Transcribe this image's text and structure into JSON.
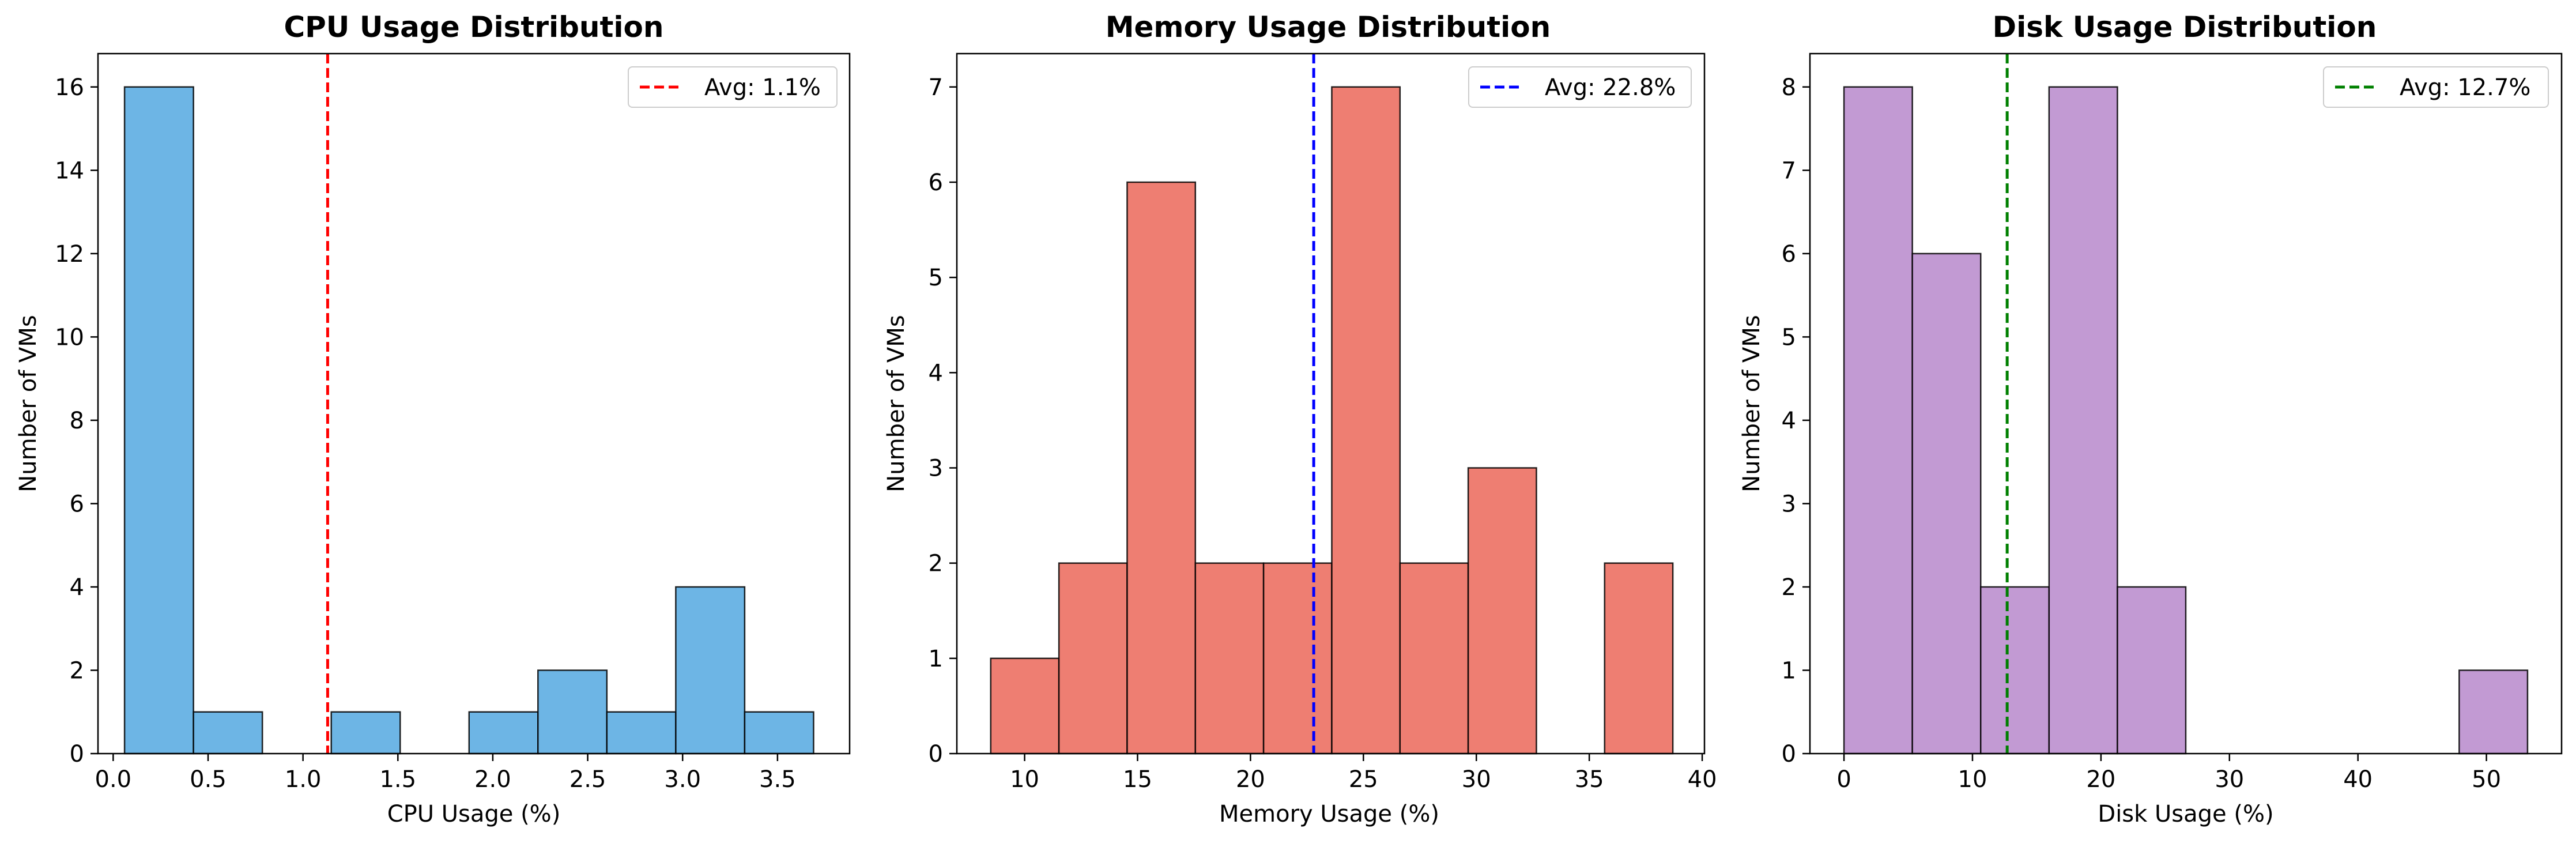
{
  "figure": {
    "background": "#ffffff"
  },
  "chart_data": [
    {
      "type": "bar",
      "histogram": true,
      "title": "CPU Usage Distribution",
      "xlabel": "CPU Usage (%)",
      "ylabel": "Number of VMs",
      "xlim": [
        -0.08,
        3.88
      ],
      "ylim": [
        0,
        16.8
      ],
      "xticks": [
        0.0,
        0.5,
        1.0,
        1.5,
        2.0,
        2.5,
        3.0,
        3.5
      ],
      "xtick_labels": [
        "0.0",
        "0.5",
        "1.0",
        "1.5",
        "2.0",
        "2.5",
        "3.0",
        "3.5"
      ],
      "yticks": [
        0,
        2,
        4,
        6,
        8,
        10,
        12,
        14,
        16
      ],
      "ytick_labels": [
        "0",
        "2",
        "4",
        "6",
        "8",
        "10",
        "12",
        "14",
        "16"
      ],
      "bin_edges": [
        0.06,
        0.423,
        0.786,
        1.149,
        1.512,
        1.875,
        2.238,
        2.601,
        2.964,
        3.327,
        3.69
      ],
      "counts": [
        16,
        1,
        0,
        1,
        0,
        1,
        2,
        1,
        4,
        1
      ],
      "bar_color": "#5dade2",
      "avg": {
        "value": 1.13,
        "color": "#ff0000",
        "label": "Avg: 1.1%"
      },
      "legend_loc": "upper right",
      "grid": false
    },
    {
      "type": "bar",
      "histogram": true,
      "title": "Memory Usage Distribution",
      "xlabel": "Memory Usage (%)",
      "ylabel": "Number of VMs",
      "xlim": [
        7.0,
        40.1
      ],
      "ylim": [
        0,
        7.35
      ],
      "xticks": [
        10,
        15,
        20,
        25,
        30,
        35,
        40
      ],
      "xtick_labels": [
        "10",
        "15",
        "20",
        "25",
        "30",
        "35",
        "40"
      ],
      "yticks": [
        0,
        1,
        2,
        3,
        4,
        5,
        6,
        7
      ],
      "ytick_labels": [
        "0",
        "1",
        "2",
        "3",
        "4",
        "5",
        "6",
        "7"
      ],
      "bin_edges": [
        8.5,
        11.52,
        14.54,
        17.56,
        20.58,
        23.6,
        26.62,
        29.64,
        32.66,
        35.68,
        38.7
      ],
      "counts": [
        1,
        2,
        6,
        2,
        2,
        7,
        2,
        3,
        0,
        2
      ],
      "bar_color": "#ec7063",
      "avg": {
        "value": 22.8,
        "color": "#0000ff",
        "label": "Avg: 22.8%"
      },
      "legend_loc": "upper right",
      "grid": false
    },
    {
      "type": "bar",
      "histogram": true,
      "title": "Disk Usage Distribution",
      "xlabel": "Disk Usage (%)",
      "ylabel": "Number of VMs",
      "xlim": [
        -2.65,
        55.85
      ],
      "ylim": [
        0,
        8.4
      ],
      "xticks": [
        0,
        10,
        20,
        30,
        40,
        50
      ],
      "xtick_labels": [
        "0",
        "10",
        "20",
        "30",
        "40",
        "50"
      ],
      "yticks": [
        0,
        1,
        2,
        3,
        4,
        5,
        6,
        7,
        8
      ],
      "ytick_labels": [
        "0",
        "1",
        "2",
        "3",
        "4",
        "5",
        "6",
        "7",
        "8"
      ],
      "bin_edges": [
        0.0,
        5.32,
        10.64,
        15.96,
        21.28,
        26.6,
        31.92,
        37.24,
        42.56,
        47.88,
        53.2
      ],
      "counts": [
        8,
        6,
        2,
        8,
        2,
        0,
        0,
        0,
        0,
        1
      ],
      "bar_color": "#bb8fce",
      "avg": {
        "value": 12.7,
        "color": "#008000",
        "label": "Avg: 12.7%"
      },
      "legend_loc": "upper right",
      "grid": false
    }
  ]
}
